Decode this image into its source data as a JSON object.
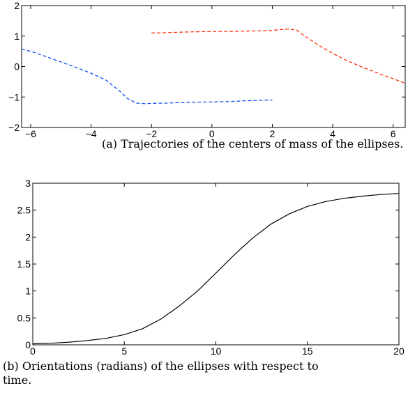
{
  "chart_data": [
    {
      "type": "line",
      "xlim": [
        -6.3,
        6.4
      ],
      "ylim": [
        -2,
        2
      ],
      "xticks": [
        -6,
        -4,
        -2,
        0,
        2,
        4,
        6
      ],
      "yticks": [
        -2,
        -1,
        0,
        1,
        2
      ],
      "xtick_labels": [
        "−6",
        "−4",
        "−2",
        "0",
        "2",
        "4",
        "6"
      ],
      "ytick_labels": [
        "−2",
        "−1",
        "0",
        "1",
        "2"
      ],
      "grid": false,
      "series": [
        {
          "color": "#ff2200",
          "style": "dashed",
          "x": [
            -2,
            -1.5,
            -1,
            -0.5,
            0,
            0.5,
            1,
            1.5,
            2,
            2.2,
            2.5,
            2.8,
            3,
            3.5,
            4,
            4.5,
            5,
            5.5,
            6,
            6.4
          ],
          "y": [
            1.1,
            1.11,
            1.13,
            1.14,
            1.15,
            1.15,
            1.16,
            1.17,
            1.18,
            1.21,
            1.23,
            1.2,
            1.05,
            0.72,
            0.43,
            0.18,
            -0.03,
            -0.22,
            -0.4,
            -0.55
          ]
        },
        {
          "color": "#0044ee",
          "style": "dashed",
          "x": [
            -6.3,
            -6,
            -5.5,
            -5,
            -4.5,
            -4,
            -3.5,
            -3,
            -2.8,
            -2.5,
            -2.2,
            -2,
            -1.5,
            -1,
            -0.5,
            0,
            0.5,
            1,
            1.5,
            2
          ],
          "y": [
            0.57,
            0.5,
            0.33,
            0.15,
            -0.03,
            -0.22,
            -0.45,
            -0.85,
            -1.05,
            -1.2,
            -1.22,
            -1.21,
            -1.2,
            -1.18,
            -1.17,
            -1.16,
            -1.15,
            -1.13,
            -1.11,
            -1.1
          ]
        }
      ]
    },
    {
      "type": "line",
      "xlim": [
        0,
        20
      ],
      "ylim": [
        0,
        3
      ],
      "xticks": [
        0,
        5,
        10,
        15,
        20
      ],
      "yticks": [
        0,
        0.5,
        1,
        1.5,
        2,
        2.5,
        3
      ],
      "xtick_labels": [
        "0",
        "5",
        "10",
        "15",
        "20"
      ],
      "ytick_labels": [
        "0",
        "0.5",
        "1",
        "1.5",
        "2",
        "2.5",
        "3"
      ],
      "grid": false,
      "series": [
        {
          "color": "#000000",
          "style": "solid",
          "x": [
            0,
            1,
            2,
            3,
            4,
            5,
            6,
            7,
            8,
            9,
            10,
            11,
            12,
            13,
            14,
            15,
            16,
            17,
            18,
            19,
            20
          ],
          "y": [
            0.02,
            0.03,
            0.05,
            0.08,
            0.12,
            0.19,
            0.3,
            0.48,
            0.72,
            1.0,
            1.33,
            1.67,
            1.98,
            2.24,
            2.43,
            2.57,
            2.66,
            2.72,
            2.76,
            2.79,
            2.81
          ]
        }
      ]
    }
  ],
  "captions": [
    "(a)  Trajectories of the centers of mass of the ellipses.",
    "(b)  Orientations (radians) of the ellipses with respect to",
    "time."
  ]
}
